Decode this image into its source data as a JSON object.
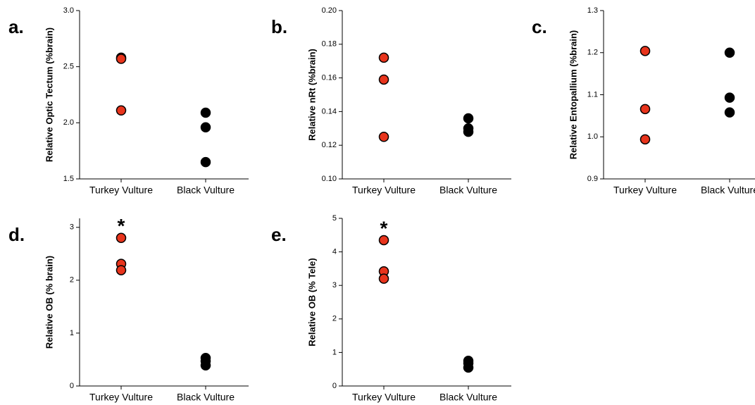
{
  "chart_data": [
    {
      "type": "dotplot",
      "label": "a.",
      "ylabel": "Relative Optic Tectum (%brain)",
      "categories": [
        "Turkey Vulture",
        "Black Vulture"
      ],
      "colors": [
        "#e8341c",
        "#000000"
      ],
      "values": [
        [
          2.58,
          2.57,
          2.11
        ],
        [
          2.09,
          1.96,
          1.65
        ]
      ],
      "ylim": [
        1.5,
        3.0
      ],
      "yticks": [
        {
          "value": 1.5,
          "label": "1.5"
        },
        {
          "value": 2.0,
          "label": "2.0"
        },
        {
          "value": 2.5,
          "label": "2.5"
        },
        {
          "value": 3.0,
          "label": "3.0"
        }
      ]
    },
    {
      "type": "dotplot",
      "label": "b.",
      "ylabel": "Relative nRt (%brain)",
      "categories": [
        "Turkey Vulture",
        "Black Vulture"
      ],
      "colors": [
        "#e8341c",
        "#000000"
      ],
      "values": [
        [
          0.172,
          0.159,
          0.125
        ],
        [
          0.136,
          0.13,
          0.128
        ]
      ],
      "ylim": [
        0.1,
        0.2
      ],
      "yticks": [
        {
          "value": 0.1,
          "label": "0.10"
        },
        0.12,
        0.14,
        0.16,
        0.18,
        {
          "value": 0.2,
          "label": "0.20"
        }
      ]
    },
    {
      "type": "dotplot",
      "label": "c.",
      "ylabel": "Relative Entopallium (%brain)",
      "categories": [
        "Turkey Vulture",
        "Black Vulture"
      ],
      "colors": [
        "#e8341c",
        "#000000"
      ],
      "values": [
        [
          1.204,
          1.066,
          0.994
        ],
        [
          1.2,
          1.093,
          1.058
        ]
      ],
      "ylim": [
        0.9,
        1.3
      ],
      "yticks": [
        0.9,
        {
          "value": 1.0,
          "label": "1.0"
        },
        1.1,
        1.2,
        1.3
      ]
    },
    {
      "type": "dotplot",
      "label": "d.",
      "ylabel": "Relative OB (% brain)",
      "annotation": "*",
      "categories": [
        "Turkey Vulture",
        "Black Vulture"
      ],
      "colors": [
        "#e8341c",
        "#000000"
      ],
      "values": [
        [
          2.8,
          2.31,
          2.19
        ],
        [
          0.53,
          0.47,
          0.39
        ]
      ],
      "ylim": [
        0,
        3.17
      ],
      "yticks": [
        0,
        1,
        2,
        3
      ]
    },
    {
      "type": "dotplot",
      "label": "e.",
      "ylabel": "Relative OB (% Tele)",
      "annotation": "*",
      "categories": [
        "Turkey Vulture",
        "Black Vulture"
      ],
      "colors": [
        "#e8341c",
        "#000000"
      ],
      "values": [
        [
          4.35,
          3.42,
          3.2
        ],
        [
          0.75,
          0.68,
          0.55
        ]
      ],
      "ylim": [
        0,
        5
      ],
      "yticks": [
        0,
        1,
        2,
        3,
        4,
        5
      ]
    }
  ]
}
